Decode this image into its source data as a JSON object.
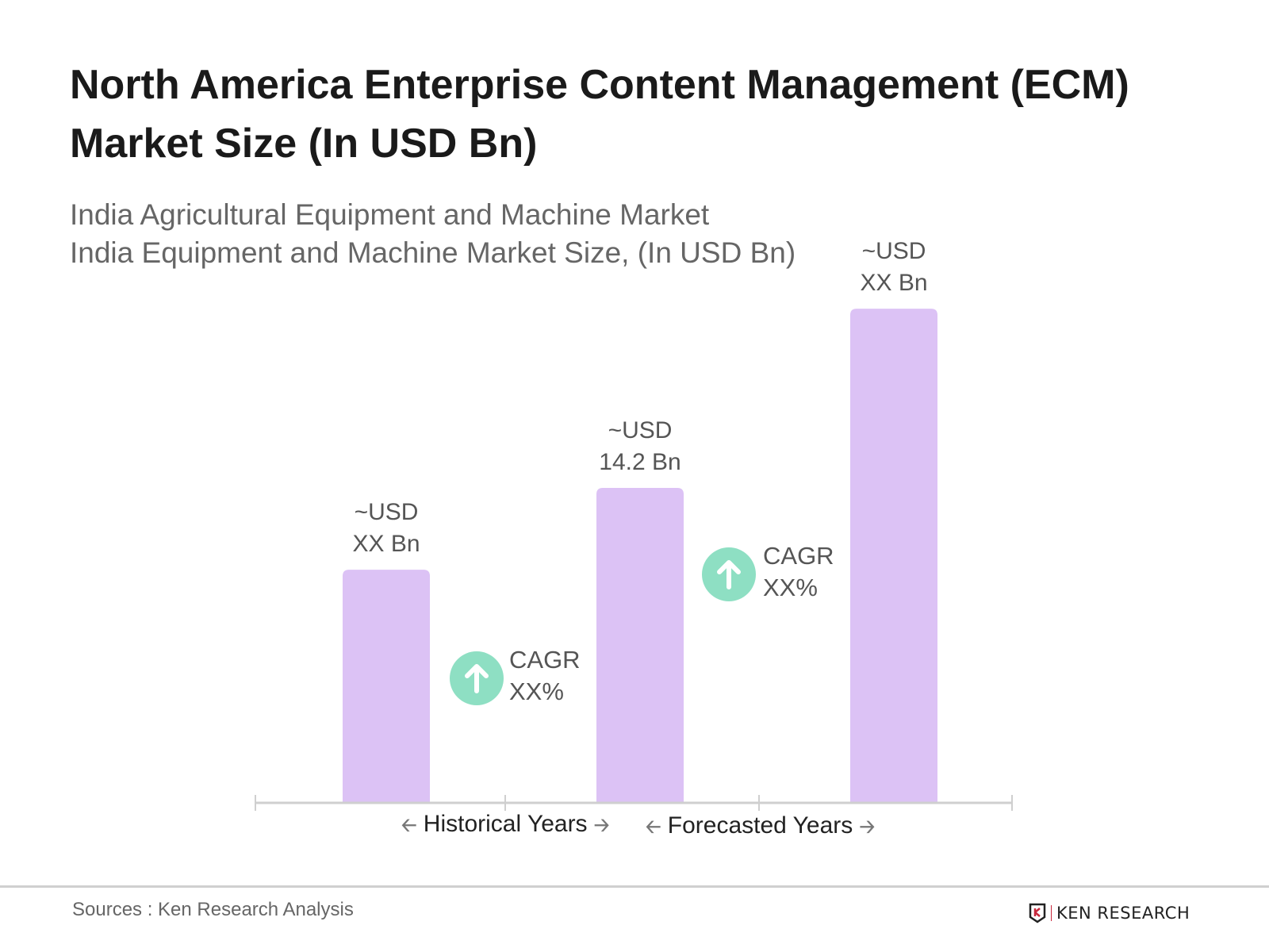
{
  "title": "North America Enterprise Content Management (ECM) Market Size (In USD Bn)",
  "subtitle_lines": [
    "India Agricultural Equipment and Machine Market",
    "India Equipment and Machine Market Size, (In USD Bn)"
  ],
  "chart_data": {
    "type": "bar",
    "categories": [
      "",
      "",
      ""
    ],
    "values": [
      10.5,
      14.2,
      22.3
    ],
    "data_labels": [
      {
        "line1": "~USD",
        "line2": "XX Bn"
      },
      {
        "line1": "~USD",
        "line2": "14.2 Bn"
      },
      {
        "line1": "~USD",
        "line2": "XX Bn"
      }
    ],
    "bar_color": "#DCC2F5",
    "cagr_annotations": [
      {
        "label": "CAGR",
        "value": "XX%",
        "icon": "arrow-up-circle-icon",
        "color": "#8EDFC3"
      },
      {
        "label": "CAGR",
        "value": "XX%",
        "icon": "arrow-up-circle-icon",
        "color": "#8EDFC3"
      }
    ],
    "x_segments": [
      "Historical Years",
      "Forecasted Years"
    ],
    "grid": false,
    "legend": "none"
  },
  "footer": {
    "sources": "Sources : Ken Research Analysis",
    "logo_text": "KEN RESEARCH"
  }
}
